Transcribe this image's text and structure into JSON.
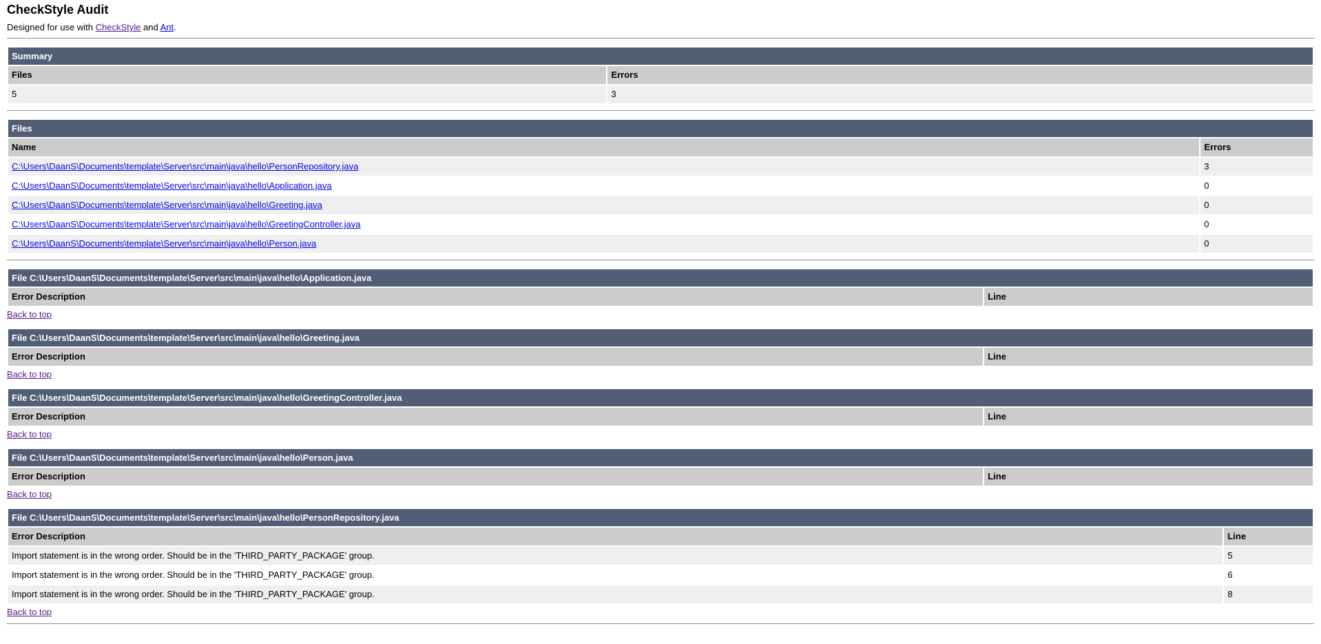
{
  "page": {
    "title": "CheckStyle Audit",
    "intro_prefix": "Designed for use with ",
    "checkstyle_link": "CheckStyle",
    "intro_and": " and ",
    "ant_link": "Ant",
    "intro_period": "."
  },
  "summary": {
    "heading": "Summary",
    "columns": {
      "files": "Files",
      "errors": "Errors"
    },
    "files_count": "5",
    "errors_count": "3"
  },
  "files": {
    "heading": "Files",
    "columns": {
      "name": "Name",
      "errors": "Errors"
    },
    "rows": [
      {
        "name": "C:\\Users\\DaanS\\Documents\\template\\Server\\src\\main\\java\\hello\\PersonRepository.java",
        "errors": "3"
      },
      {
        "name": "C:\\Users\\DaanS\\Documents\\template\\Server\\src\\main\\java\\hello\\Application.java",
        "errors": "0"
      },
      {
        "name": "C:\\Users\\DaanS\\Documents\\template\\Server\\src\\main\\java\\hello\\Greeting.java",
        "errors": "0"
      },
      {
        "name": "C:\\Users\\DaanS\\Documents\\template\\Server\\src\\main\\java\\hello\\GreetingController.java",
        "errors": "0"
      },
      {
        "name": "C:\\Users\\DaanS\\Documents\\template\\Server\\src\\main\\java\\hello\\Person.java",
        "errors": "0"
      }
    ]
  },
  "file_sections": {
    "columns": {
      "error_description": "Error Description",
      "line": "Line"
    },
    "back_to_top": "Back to top",
    "items": [
      {
        "heading": "File C:\\Users\\DaanS\\Documents\\template\\Server\\src\\main\\java\\hello\\Application.java",
        "errors": []
      },
      {
        "heading": "File C:\\Users\\DaanS\\Documents\\template\\Server\\src\\main\\java\\hello\\Greeting.java",
        "errors": []
      },
      {
        "heading": "File C:\\Users\\DaanS\\Documents\\template\\Server\\src\\main\\java\\hello\\GreetingController.java",
        "errors": []
      },
      {
        "heading": "File C:\\Users\\DaanS\\Documents\\template\\Server\\src\\main\\java\\hello\\Person.java",
        "errors": []
      },
      {
        "heading": "File C:\\Users\\DaanS\\Documents\\template\\Server\\src\\main\\java\\hello\\PersonRepository.java",
        "errors": [
          {
            "description": "Import statement is in the wrong order. Should be in the 'THIRD_PARTY_PACKAGE' group.",
            "line": "5"
          },
          {
            "description": "Import statement is in the wrong order. Should be in the 'THIRD_PARTY_PACKAGE' group.",
            "line": "6"
          },
          {
            "description": "Import statement is in the wrong order. Should be in the 'THIRD_PARTY_PACKAGE' group.",
            "line": "8"
          }
        ]
      }
    ]
  },
  "colors": {
    "section_header_bg": "#525D76",
    "column_header_bg": "#CCCCCC",
    "row_alt_bg": "#EFEFEF",
    "row_bg": "#FFFFFF",
    "link_color": "#0000EE",
    "visited_link_color": "#551A8B",
    "divider_color": "#8E8E8E",
    "text_color": "#000000"
  }
}
